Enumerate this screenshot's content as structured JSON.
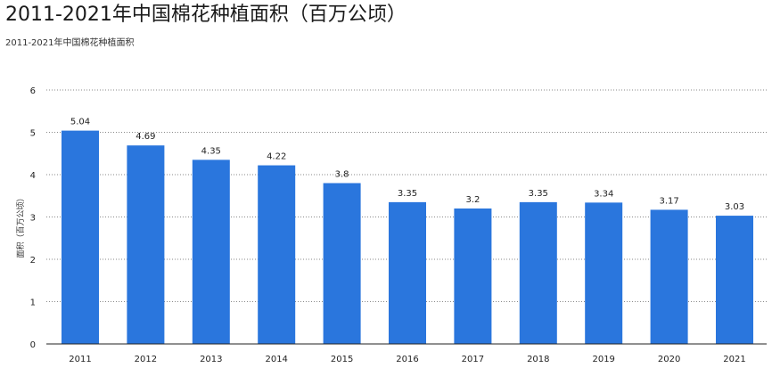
{
  "header": {
    "title": "2011-2021年中国棉花种植面积（百万公顷）",
    "subtitle": "2011-2021年中国棉花种植面积"
  },
  "chart_data": {
    "type": "bar",
    "title": "2011-2021年中国棉花种植面积（百万公顷）",
    "subtitle": "2011-2021年中国棉花种植面积",
    "categories": [
      "2011",
      "2012",
      "2013",
      "2014",
      "2015",
      "2016",
      "2017",
      "2018",
      "2019",
      "2020",
      "2021"
    ],
    "values": [
      5.04,
      4.69,
      4.35,
      4.22,
      3.8,
      3.35,
      3.2,
      3.35,
      3.34,
      3.17,
      3.03
    ],
    "value_labels": [
      "5.04",
      "4.69",
      "4.35",
      "4.22",
      "3.8",
      "3.35",
      "3.2",
      "3.35",
      "3.34",
      "3.17",
      "3.03"
    ],
    "y_ticks": [
      "0",
      "1",
      "2",
      "3",
      "4",
      "5",
      "6"
    ],
    "xlabel": "",
    "ylabel": "面积（百万公顷）",
    "ylim": [
      0,
      6
    ],
    "grid": true,
    "grid_style": "dotted",
    "legend": "none",
    "bar_color": "#2a76dd"
  }
}
